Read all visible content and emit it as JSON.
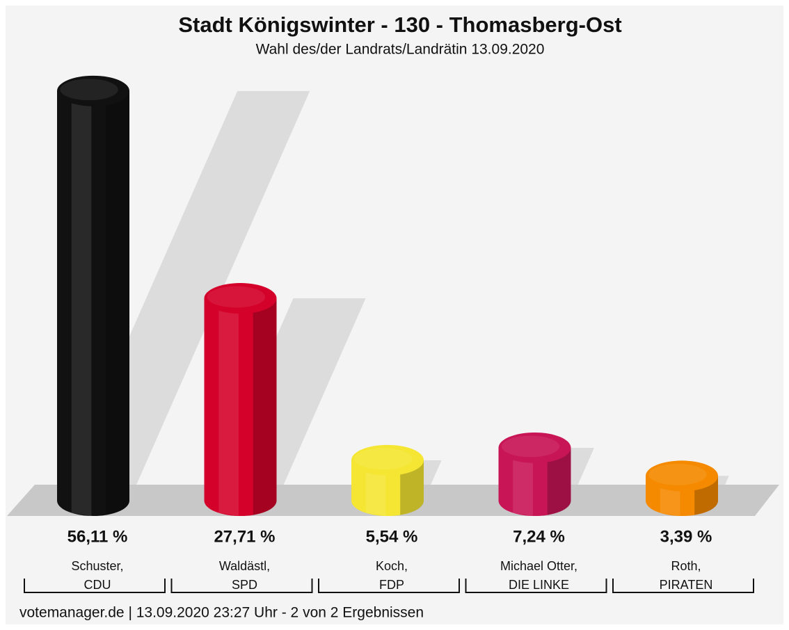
{
  "chart_data": {
    "type": "bar",
    "title": "Stadt Königswinter - 130 - Thomasberg-Ost",
    "subtitle": "Wahl des/der Landrats/Landrätin 13.09.2020",
    "categories": [
      [
        "Schuster,",
        "CDU"
      ],
      [
        "Waldästl,",
        "SPD"
      ],
      [
        "Koch,",
        "FDP"
      ],
      [
        "Michael Otter,",
        "DIE LINKE"
      ],
      [
        "Roth,",
        "PIRATEN"
      ]
    ],
    "values": [
      56.11,
      27.71,
      5.54,
      7.24,
      3.39
    ],
    "value_labels": [
      "56,11 %",
      "27,71 %",
      "5,54 %",
      "7,24 %",
      "3,39 %"
    ],
    "colors": [
      "#111111",
      "#d4022a",
      "#f5e633",
      "#c81556",
      "#f58a00"
    ],
    "footer": "votemanager.de | 13.09.2020 23:27 Uhr - 2 von 2 Ergebnissen"
  }
}
